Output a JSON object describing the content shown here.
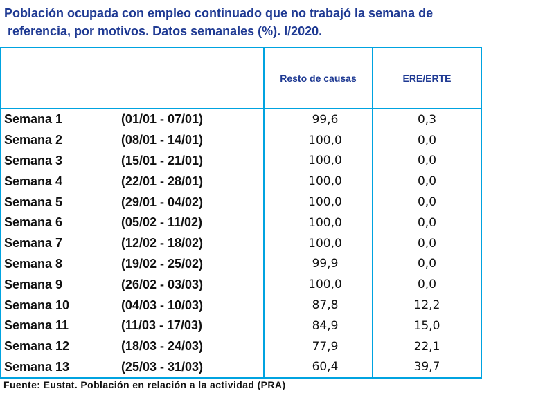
{
  "title": {
    "line1": "Población ocupada con empleo continuado que no trabajó la semana de",
    "line2": "referencia, por motivos. Datos semanales (%). I/2020."
  },
  "table": {
    "headers": [
      "Resto de causas",
      "ERE/ERTE"
    ],
    "rows": [
      {
        "week": "Semana 1",
        "range": "(01/01 - 07/01)",
        "resto": "99,6",
        "ere": "0,3"
      },
      {
        "week": "Semana 2",
        "range": "(08/01 - 14/01)",
        "resto": "100,0",
        "ere": "0,0"
      },
      {
        "week": "Semana 3",
        "range": "(15/01 - 21/01)",
        "resto": "100,0",
        "ere": "0,0"
      },
      {
        "week": "Semana 4",
        "range": "(22/01 - 28/01)",
        "resto": "100,0",
        "ere": "0,0"
      },
      {
        "week": "Semana 5",
        "range": "(29/01 - 04/02)",
        "resto": "100,0",
        "ere": "0,0"
      },
      {
        "week": "Semana 6",
        "range": "(05/02 - 11/02)",
        "resto": "100,0",
        "ere": "0,0"
      },
      {
        "week": "Semana 7",
        "range": "(12/02 - 18/02)",
        "resto": "100,0",
        "ere": "0,0"
      },
      {
        "week": "Semana 8",
        "range": "(19/02 - 25/02)",
        "resto": "99,9",
        "ere": "0,0"
      },
      {
        "week": "Semana 9",
        "range": "(26/02 - 03/03)",
        "resto": "100,0",
        "ere": "0,0"
      },
      {
        "week": "Semana 10",
        "range": "(04/03 - 10/03)",
        "resto": "87,8",
        "ere": "12,2"
      },
      {
        "week": "Semana 11",
        "range": "(11/03 - 17/03)",
        "resto": "84,9",
        "ere": "15,0"
      },
      {
        "week": "Semana 12",
        "range": "(18/03 - 24/03)",
        "resto": "77,9",
        "ere": "22,1"
      },
      {
        "week": "Semana 13",
        "range": "(25/03 - 31/03)",
        "resto": "60,4",
        "ere": "39,7"
      }
    ]
  },
  "source": "Fuente: Eustat. Población en relación a la actividad (PRA)",
  "colors": {
    "title": "#1f3a93",
    "border": "#00a3e0"
  }
}
